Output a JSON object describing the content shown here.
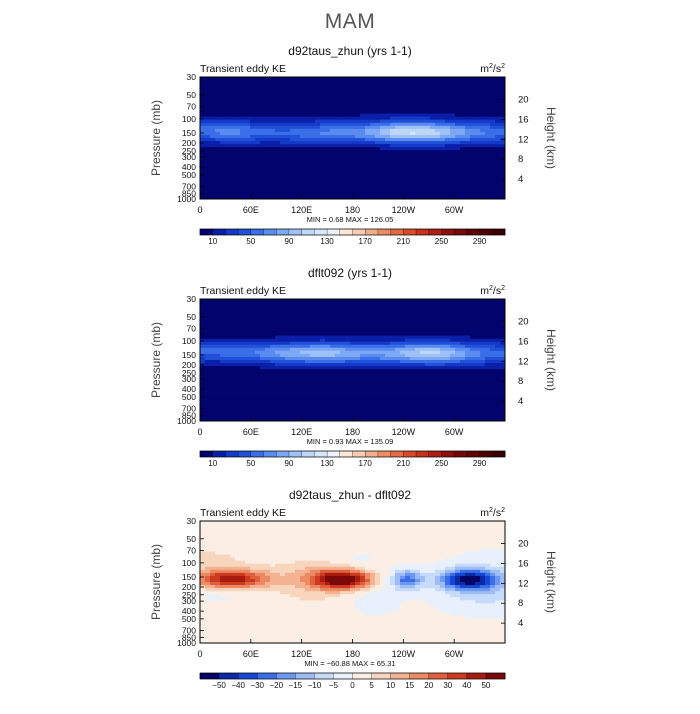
{
  "title": "MAM",
  "chart_data": [
    {
      "type": "heatmap",
      "title": "d92taus_zhun (yrs 1-1)",
      "subtitle_left": "Transient eddy KE",
      "units": "m²/s²",
      "units_base": "m",
      "units_exp1": "2",
      "units_mid": "/s",
      "units_exp2": "2",
      "ylabel": "Pressure (mb)",
      "ylabel2": "Height (km)",
      "x_ticks": [
        "0",
        "60E",
        "120E",
        "180",
        "120W",
        "60W"
      ],
      "y_ticks": [
        "30",
        "50",
        "70",
        "100",
        "150",
        "200",
        "250",
        "300",
        "400",
        "500",
        "700",
        "850",
        "1000"
      ],
      "y2_ticks": [
        "20",
        "16",
        "12",
        "8",
        "4"
      ],
      "stats": "MIN =     0.68   MAX =  126.05",
      "min": 0.68,
      "max": 126.05,
      "colorbar_labels": [
        "10",
        "50",
        "90",
        "130",
        "170",
        "210",
        "250",
        "290"
      ],
      "colorbar_levels": 24
    },
    {
      "type": "heatmap",
      "title": "dflt092 (yrs 1-1)",
      "subtitle_left": "Transient eddy KE",
      "units": "m²/s²",
      "units_base": "m",
      "units_exp1": "2",
      "units_mid": "/s",
      "units_exp2": "2",
      "ylabel": "Pressure (mb)",
      "ylabel2": "Height (km)",
      "x_ticks": [
        "0",
        "60E",
        "120E",
        "180",
        "120W",
        "60W"
      ],
      "y_ticks": [
        "30",
        "50",
        "70",
        "100",
        "150",
        "200",
        "250",
        "300",
        "400",
        "500",
        "700",
        "850",
        "1000"
      ],
      "y2_ticks": [
        "20",
        "16",
        "12",
        "8",
        "4"
      ],
      "stats": "MIN =     0.93   MAX =  135.09",
      "min": 0.93,
      "max": 135.09,
      "colorbar_labels": [
        "10",
        "50",
        "90",
        "130",
        "170",
        "210",
        "250",
        "290"
      ],
      "colorbar_levels": 24
    },
    {
      "type": "heatmap",
      "title": "d92taus_zhun - dflt092",
      "subtitle_left": "Transient eddy KE",
      "units": "m²/s²",
      "units_base": "m",
      "units_exp1": "2",
      "units_mid": "/s",
      "units_exp2": "2",
      "ylabel": "Pressure (mb)",
      "ylabel2": "Height (km)",
      "x_ticks": [
        "0",
        "60E",
        "120E",
        "180",
        "120W",
        "60W"
      ],
      "y_ticks": [
        "30",
        "50",
        "70",
        "100",
        "150",
        "200",
        "250",
        "300",
        "400",
        "500",
        "700",
        "850",
        "1000"
      ],
      "y2_ticks": [
        "20",
        "16",
        "12",
        "8",
        "4"
      ],
      "stats": "MIN = −60.88   MAX =   65.31",
      "min": -60.88,
      "max": 65.31,
      "colorbar_labels": [
        "−50",
        "−40",
        "−30",
        "−20",
        "−15",
        "−10",
        "−5",
        "0",
        "5",
        "10",
        "15",
        "20",
        "30",
        "40",
        "50"
      ],
      "colorbar_levels": 16
    }
  ]
}
